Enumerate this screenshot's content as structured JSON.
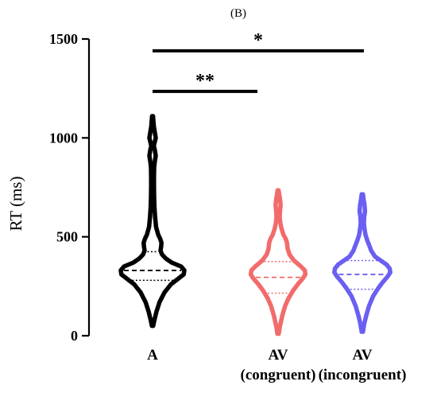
{
  "chart_data": {
    "type": "violin",
    "panel_label": "(B)",
    "ylabel": "RT (ms)",
    "ylim": [
      0,
      1500
    ],
    "yticks": [
      0,
      500,
      1000,
      1500
    ],
    "categories": [
      {
        "line1": "A",
        "line2": ""
      },
      {
        "line1": "AV",
        "line2": "(congruent)"
      },
      {
        "line1": "AV",
        "line2": "(incongruent)"
      }
    ],
    "series": [
      {
        "color": "#000000",
        "median": 330,
        "q1": 280,
        "q3": 425,
        "profile": [
          [
            50,
            0.02
          ],
          [
            80,
            0.06
          ],
          [
            120,
            0.12
          ],
          [
            170,
            0.22
          ],
          [
            220,
            0.38
          ],
          [
            260,
            0.58
          ],
          [
            290,
            0.82
          ],
          [
            310,
            0.98
          ],
          [
            330,
            1.0
          ],
          [
            350,
            0.9
          ],
          [
            370,
            0.6
          ],
          [
            390,
            0.42
          ],
          [
            410,
            0.3
          ],
          [
            430,
            0.25
          ],
          [
            450,
            0.27
          ],
          [
            470,
            0.28
          ],
          [
            490,
            0.24
          ],
          [
            510,
            0.18
          ],
          [
            550,
            0.11
          ],
          [
            600,
            0.08
          ],
          [
            650,
            0.06
          ],
          [
            700,
            0.05
          ],
          [
            750,
            0.045
          ],
          [
            800,
            0.045
          ],
          [
            850,
            0.05
          ],
          [
            880,
            0.07
          ],
          [
            910,
            0.1
          ],
          [
            940,
            0.07
          ],
          [
            960,
            0.04
          ],
          [
            980,
            0.07
          ],
          [
            1000,
            0.1
          ],
          [
            1030,
            0.07
          ],
          [
            1060,
            0.04
          ],
          [
            1090,
            0.025
          ],
          [
            1110,
            0.015
          ]
        ]
      },
      {
        "color": "#f26b6b",
        "median": 295,
        "q1": 215,
        "q3": 375,
        "profile": [
          [
            10,
            0.02
          ],
          [
            50,
            0.06
          ],
          [
            100,
            0.13
          ],
          [
            150,
            0.22
          ],
          [
            190,
            0.33
          ],
          [
            230,
            0.48
          ],
          [
            260,
            0.62
          ],
          [
            290,
            0.78
          ],
          [
            310,
            0.86
          ],
          [
            330,
            0.84
          ],
          [
            350,
            0.72
          ],
          [
            380,
            0.5
          ],
          [
            410,
            0.36
          ],
          [
            440,
            0.3
          ],
          [
            470,
            0.28
          ],
          [
            490,
            0.24
          ],
          [
            510,
            0.17
          ],
          [
            540,
            0.11
          ],
          [
            570,
            0.07
          ],
          [
            600,
            0.05
          ],
          [
            630,
            0.06
          ],
          [
            660,
            0.08
          ],
          [
            690,
            0.06
          ],
          [
            715,
            0.035
          ],
          [
            735,
            0.015
          ]
        ]
      },
      {
        "color": "#6a5ff2",
        "median": 310,
        "q1": 235,
        "q3": 380,
        "profile": [
          [
            20,
            0.02
          ],
          [
            60,
            0.06
          ],
          [
            100,
            0.12
          ],
          [
            150,
            0.21
          ],
          [
            200,
            0.34
          ],
          [
            240,
            0.5
          ],
          [
            270,
            0.64
          ],
          [
            300,
            0.8
          ],
          [
            320,
            0.88
          ],
          [
            340,
            0.86
          ],
          [
            360,
            0.76
          ],
          [
            380,
            0.58
          ],
          [
            400,
            0.4
          ],
          [
            430,
            0.28
          ],
          [
            460,
            0.21
          ],
          [
            480,
            0.16
          ],
          [
            510,
            0.1
          ],
          [
            540,
            0.07
          ],
          [
            570,
            0.05
          ],
          [
            600,
            0.06
          ],
          [
            630,
            0.085
          ],
          [
            660,
            0.07
          ],
          [
            690,
            0.04
          ],
          [
            715,
            0.02
          ]
        ]
      }
    ],
    "significance": [
      {
        "from": 0,
        "to": 1,
        "label": "**",
        "y": 1235
      },
      {
        "from": 0,
        "to": 2,
        "label": "*",
        "y": 1440
      }
    ]
  }
}
